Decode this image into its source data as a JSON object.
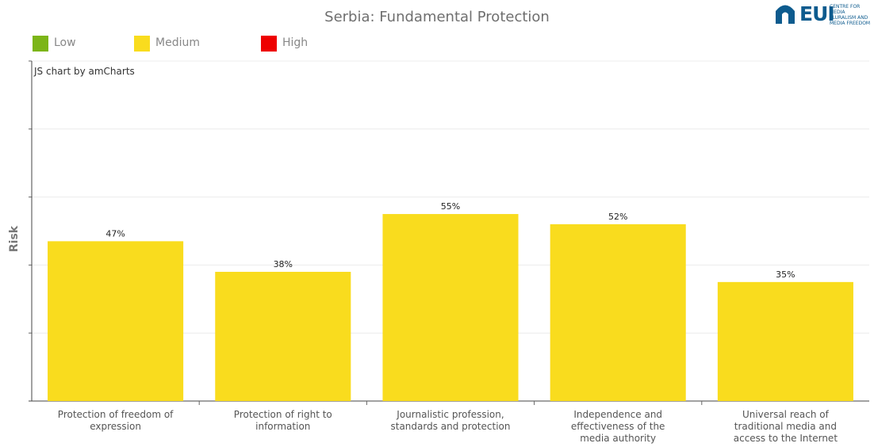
{
  "chart_data": {
    "type": "bar",
    "title": "Serbia: Fundamental Protection",
    "ylabel": "Risk",
    "xlabel": "",
    "credit": "JS chart by amCharts",
    "ylim": [
      0,
      100
    ],
    "grid": true,
    "categories": [
      "Protection of freedom of\nexpression",
      "Protection of right to\ninformation",
      "Journalistic profession,\nstandards and protection",
      "Independence and\neffectiveness of the\nmedia authority",
      "Universal reach of\ntraditional media and\naccess to the Internet"
    ],
    "values": [
      47,
      38,
      55,
      52,
      35
    ],
    "value_labels": [
      "47%",
      "38%",
      "55%",
      "52%",
      "35%"
    ],
    "bar_color": "#f9dc1e",
    "legend": {
      "placement": "top-left",
      "items": [
        {
          "label": "Low",
          "color": "#7cb518"
        },
        {
          "label": "Medium",
          "color": "#f9dc1e"
        },
        {
          "label": "High",
          "color": "#ee0000"
        }
      ]
    }
  },
  "logo": {
    "wordmark": "EUI",
    "subtitle": "CENTRE FOR MEDIA\nPLURALISM AND\nMEDIA FREEDOM",
    "color": "#0d5b8e"
  }
}
